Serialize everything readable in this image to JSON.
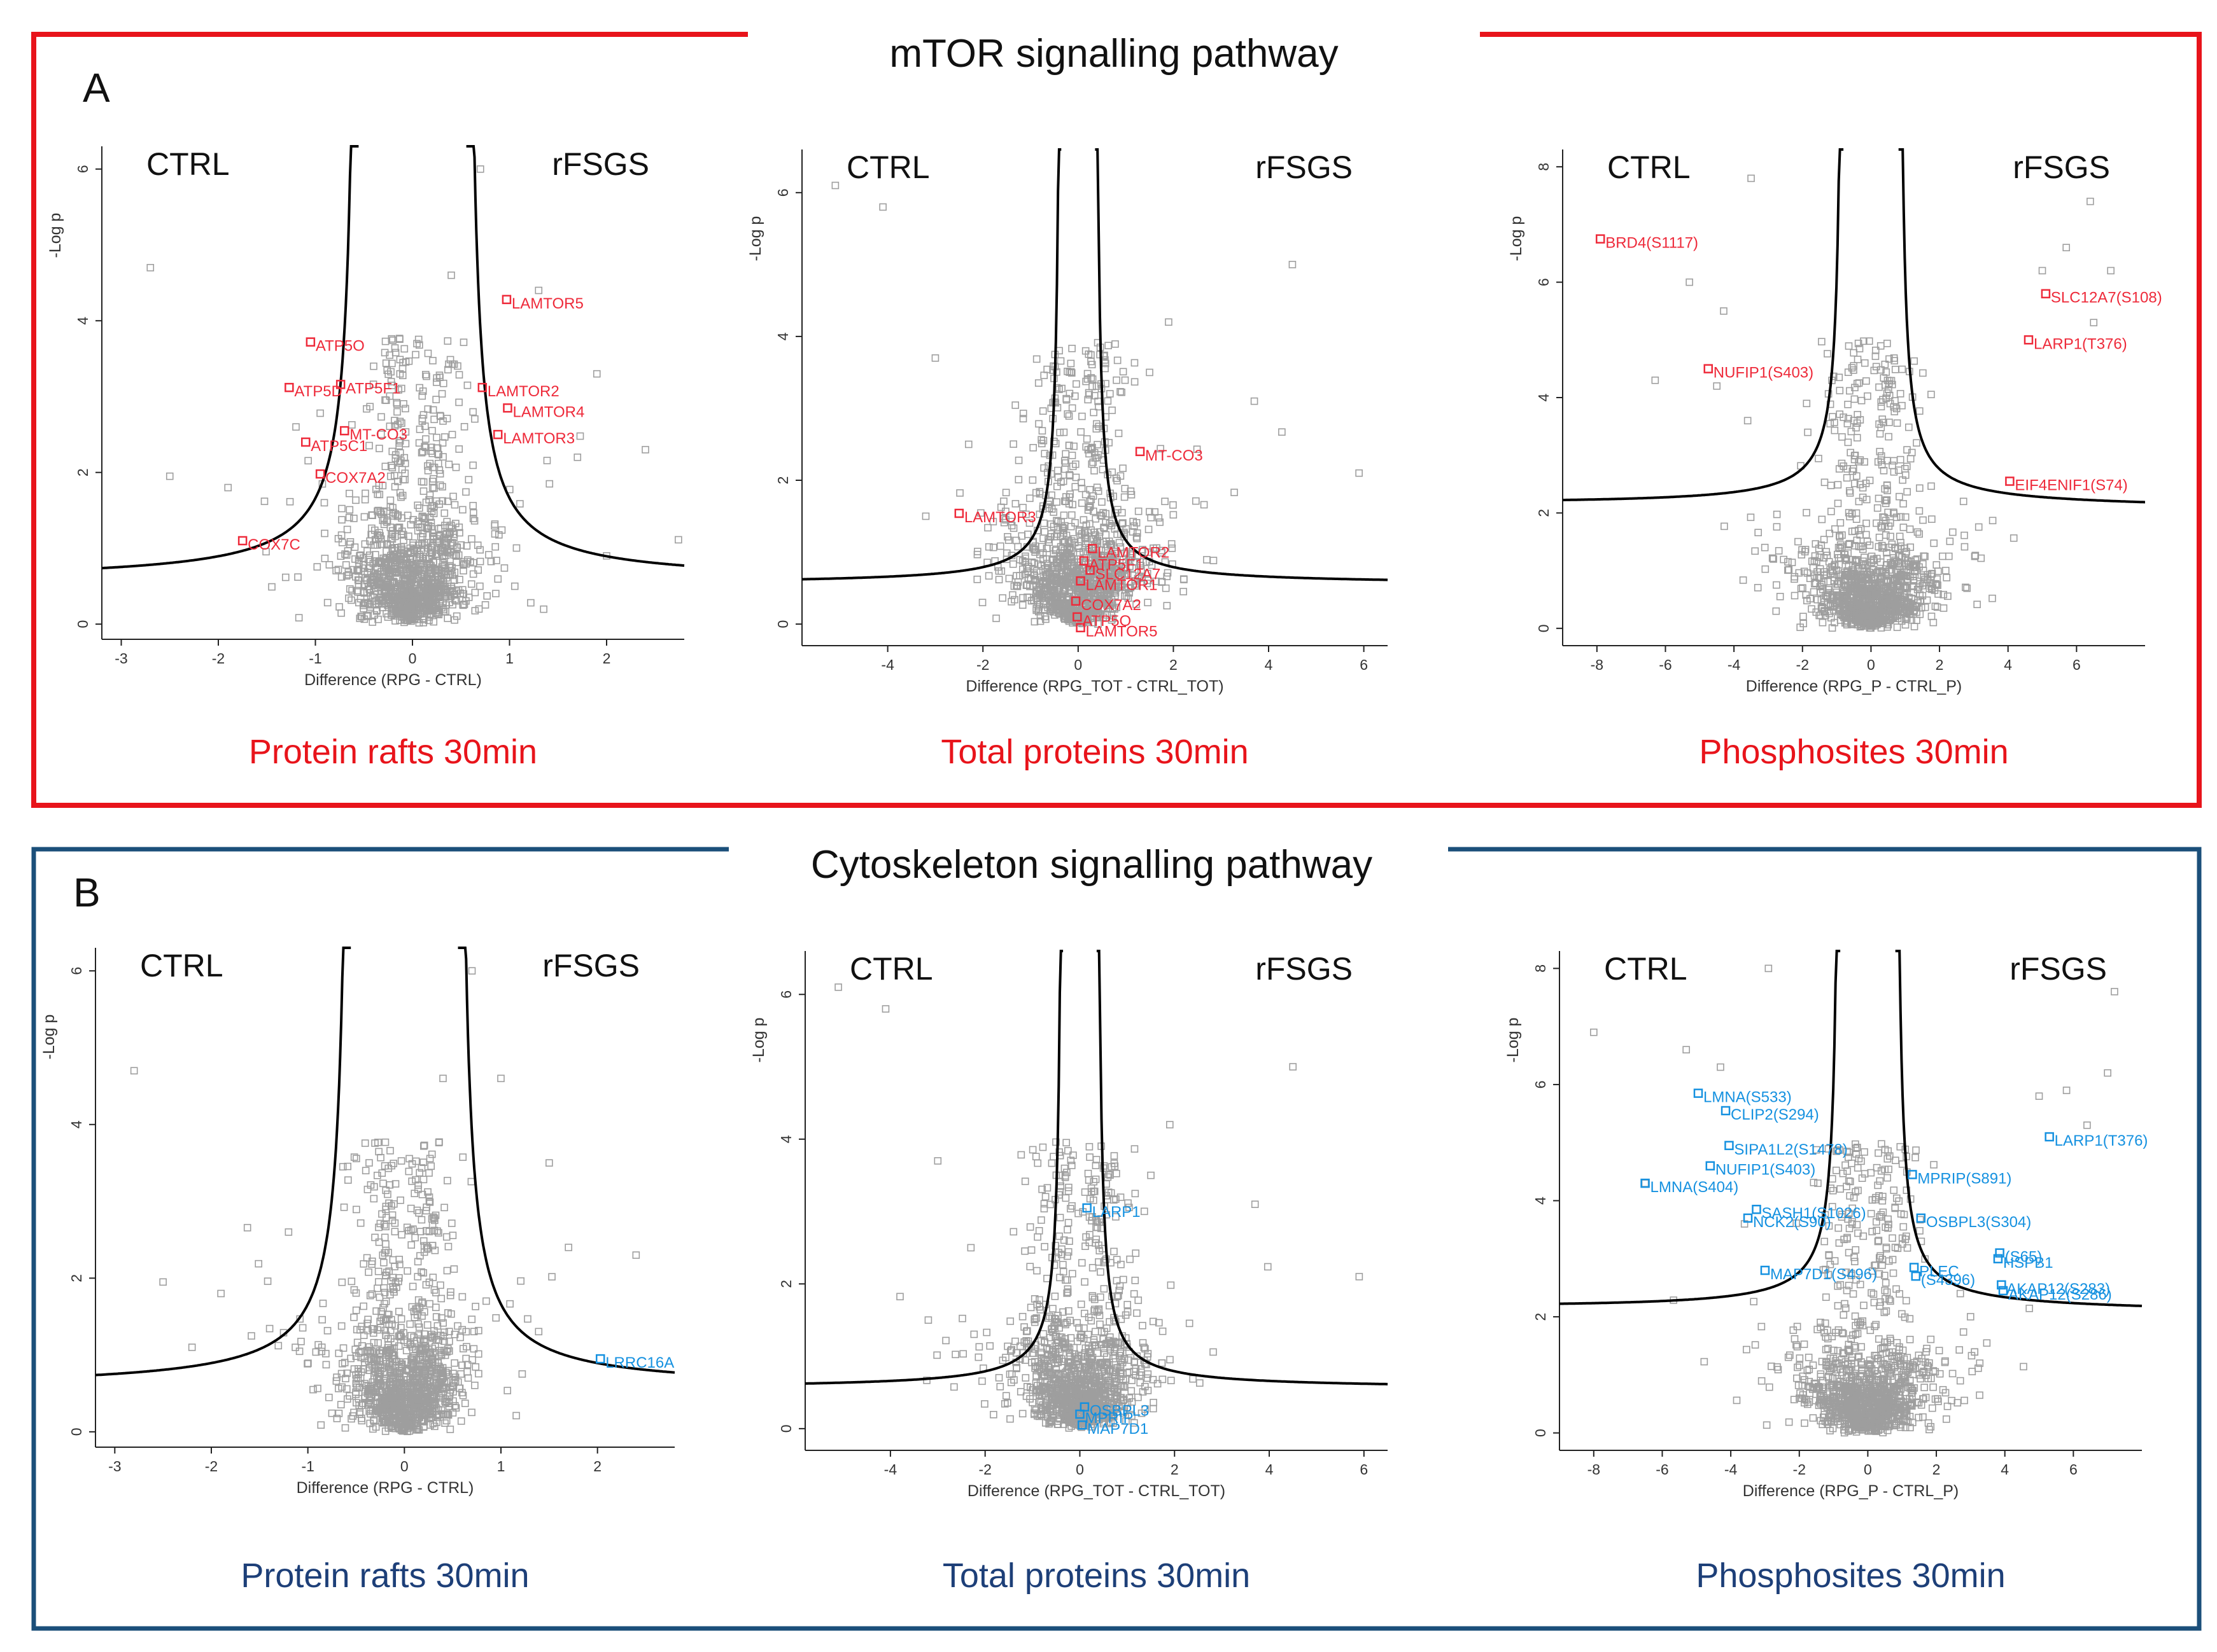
{
  "panels": [
    {
      "letter": "A",
      "title": "mTOR signalling pathway",
      "color": "#e8141b",
      "label_color": "#ee2a3a",
      "caption_color": "#e8141b"
    },
    {
      "letter": "B",
      "title": "Cytoskeleton signalling pathway",
      "color": "#1b4f7a",
      "label_color": "#1591e0",
      "caption_color": "#1d3f78"
    }
  ],
  "chart_data": [
    {
      "type": "scatter",
      "panel": "A",
      "title": "Protein rafts 30min",
      "left_label": "CTRL",
      "right_label": "rFSGS",
      "xlabel": "Difference (RPG - CTRL)",
      "ylabel": "-Log p",
      "xlim": [
        -3.2,
        2.8
      ],
      "ylim": [
        -0.2,
        6.3
      ],
      "xticks": [
        -3,
        -2,
        -1,
        0,
        1,
        2
      ],
      "yticks": [
        0,
        2,
        4,
        6
      ],
      "threshold": {
        "s0": 0.55,
        "c": 0.5
      },
      "background_seed": 11,
      "background_extra": [
        [
          -2.7,
          4.7
        ],
        [
          -2.5,
          1.95
        ],
        [
          -1.2,
          2.6
        ],
        [
          0.7,
          6.0
        ],
        [
          1.3,
          4.4
        ],
        [
          1.7,
          2.2
        ],
        [
          2.4,
          2.3
        ],
        [
          -0.4,
          3.4
        ],
        [
          0.4,
          4.6
        ],
        [
          2.0,
          0.9
        ],
        [
          -1.9,
          1.8
        ],
        [
          1.9,
          3.3
        ]
      ],
      "highlights": [
        {
          "label": "ATP5O",
          "x": -1.05,
          "y": 3.72
        },
        {
          "label": "ATP5D",
          "x": -1.27,
          "y": 3.12
        },
        {
          "label": "ATP5F1",
          "x": -0.74,
          "y": 3.16
        },
        {
          "label": "MT-CO3",
          "x": -0.7,
          "y": 2.55
        },
        {
          "label": "ATP5C1",
          "x": -1.1,
          "y": 2.4
        },
        {
          "label": "COX7A2",
          "x": -0.95,
          "y": 1.98
        },
        {
          "label": "COX7C",
          "x": -1.75,
          "y": 1.1
        },
        {
          "label": "LAMTOR5",
          "x": 0.97,
          "y": 4.28
        },
        {
          "label": "LAMTOR2",
          "x": 0.72,
          "y": 3.12
        },
        {
          "label": "LAMTOR4",
          "x": 0.98,
          "y": 2.85
        },
        {
          "label": "LAMTOR3",
          "x": 0.88,
          "y": 2.5
        }
      ]
    },
    {
      "type": "scatter",
      "panel": "A",
      "title": "Total proteins 30min",
      "left_label": "CTRL",
      "right_label": "rFSGS",
      "xlabel": "Difference (RPG_TOT - CTRL_TOT)",
      "ylabel": "-Log p",
      "xlim": [
        -5.8,
        6.5
      ],
      "ylim": [
        -0.3,
        6.6
      ],
      "xticks": [
        -4,
        -2,
        0,
        2,
        4,
        6
      ],
      "yticks": [
        0,
        2,
        4,
        6
      ],
      "threshold": {
        "s0": 0.35,
        "c": 0.4
      },
      "background_seed": 22,
      "background_extra": [
        [
          -5.1,
          6.1
        ],
        [
          -4.1,
          5.8
        ],
        [
          4.5,
          5.0
        ],
        [
          -3.0,
          3.7
        ],
        [
          1.9,
          4.2
        ],
        [
          5.9,
          2.1
        ],
        [
          -2.3,
          2.5
        ],
        [
          3.7,
          3.1
        ],
        [
          1.5,
          3.5
        ],
        [
          -3.2,
          1.5
        ]
      ],
      "highlights": [
        {
          "label": "MT-CO3",
          "x": 1.3,
          "y": 2.4
        },
        {
          "label": "LAMTOR3",
          "x": -2.5,
          "y": 1.54
        },
        {
          "label": "LAMTOR2",
          "x": 0.3,
          "y": 1.05
        },
        {
          "label": "ATP5F1",
          "x": 0.12,
          "y": 0.88
        },
        {
          "label": "SLC12A7",
          "x": 0.25,
          "y": 0.75
        },
        {
          "label": "LAMTOR1",
          "x": 0.05,
          "y": 0.6
        },
        {
          "label": "COX7A2",
          "x": -0.05,
          "y": 0.32
        },
        {
          "label": "ATP5O",
          "x": -0.02,
          "y": 0.1
        },
        {
          "label": "LAMTOR5",
          "x": 0.05,
          "y": -0.05
        }
      ]
    },
    {
      "type": "scatter",
      "panel": "A",
      "title": "Phosphosites 30min",
      "left_label": "CTRL",
      "right_label": "rFSGS",
      "xlabel": "Difference (RPG_P - CTRL_P)",
      "ylabel": "-Log p",
      "xlim": [
        -9.0,
        8.0
      ],
      "ylim": [
        -0.3,
        8.3
      ],
      "xticks": [
        -8,
        -6,
        -4,
        -2,
        0,
        2,
        4,
        6
      ],
      "yticks": [
        0,
        2,
        4,
        6,
        8
      ],
      "threshold": {
        "s0": 0.8,
        "c": 0.8,
        "base": 2.1,
        "tilt": -0.003
      },
      "background_seed": 33,
      "background_extra": [
        [
          -3.5,
          7.8
        ],
        [
          6.4,
          7.4
        ],
        [
          5.7,
          6.6
        ],
        [
          -5.3,
          6.0
        ],
        [
          -6.3,
          4.3
        ],
        [
          -4.3,
          5.5
        ],
        [
          6.5,
          5.3
        ],
        [
          -3.6,
          3.6
        ],
        [
          7.0,
          6.2
        ],
        [
          5.0,
          6.2
        ],
        [
          -4.5,
          4.2
        ],
        [
          2.7,
          2.2
        ]
      ],
      "highlights": [
        {
          "label": "BRD4(S1117)",
          "x": -7.9,
          "y": 6.75
        },
        {
          "label": "NUFIP1(S403)",
          "x": -4.75,
          "y": 4.5
        },
        {
          "label": "SLC12A7(S108)",
          "x": 5.1,
          "y": 5.8
        },
        {
          "label": "LARP1(T376)",
          "x": 4.6,
          "y": 5.0
        },
        {
          "label": "EIF4ENIF1(S74)",
          "x": 4.05,
          "y": 2.55
        }
      ]
    },
    {
      "type": "scatter",
      "panel": "B",
      "title": "Protein rafts 30min",
      "left_label": "CTRL",
      "right_label": "rFSGS",
      "xlabel": "Difference (RPG - CTRL)",
      "ylabel": "-Log p",
      "xlim": [
        -3.2,
        2.8
      ],
      "ylim": [
        -0.2,
        6.3
      ],
      "xticks": [
        -3,
        -2,
        -1,
        0,
        1,
        2
      ],
      "yticks": [
        0,
        2,
        4,
        6
      ],
      "threshold": {
        "s0": 0.55,
        "c": 0.5
      },
      "background_seed": 44,
      "background_extra": [
        [
          -2.8,
          4.7
        ],
        [
          -2.5,
          1.95
        ],
        [
          -1.2,
          2.6
        ],
        [
          0.7,
          6.0
        ],
        [
          1.0,
          4.6
        ],
        [
          1.7,
          2.4
        ],
        [
          2.4,
          2.3
        ],
        [
          -0.4,
          3.4
        ],
        [
          0.4,
          4.6
        ],
        [
          -1.9,
          1.8
        ],
        [
          1.5,
          3.5
        ],
        [
          -2.2,
          1.1
        ]
      ],
      "highlights": [
        {
          "label": "LRRC16A",
          "x": 2.03,
          "y": 0.95
        }
      ]
    },
    {
      "type": "scatter",
      "panel": "B",
      "title": "Total proteins 30min",
      "left_label": "CTRL",
      "right_label": "rFSGS",
      "xlabel": "Difference (RPG_TOT - CTRL_TOT)",
      "ylabel": "-Log p",
      "xlim": [
        -5.8,
        6.5
      ],
      "ylim": [
        -0.3,
        6.6
      ],
      "xticks": [
        -4,
        -2,
        0,
        2,
        4,
        6
      ],
      "yticks": [
        0,
        2,
        4,
        6
      ],
      "threshold": {
        "s0": 0.35,
        "c": 0.4
      },
      "background_seed": 55,
      "background_extra": [
        [
          -5.1,
          6.1
        ],
        [
          -4.1,
          5.8
        ],
        [
          4.5,
          5.0
        ],
        [
          -3.0,
          3.7
        ],
        [
          1.9,
          4.2
        ],
        [
          5.9,
          2.1
        ],
        [
          -2.3,
          2.5
        ],
        [
          3.7,
          3.1
        ],
        [
          1.5,
          3.5
        ],
        [
          -3.2,
          1.5
        ]
      ],
      "highlights": [
        {
          "label": "LARP1",
          "x": 0.15,
          "y": 3.05
        },
        {
          "label": "OSBPL3",
          "x": 0.1,
          "y": 0.3
        },
        {
          "label": "MPRIP",
          "x": 0.0,
          "y": 0.2
        },
        {
          "label": "MAP7D1",
          "x": 0.05,
          "y": 0.05
        }
      ]
    },
    {
      "type": "scatter",
      "panel": "B",
      "title": "Phosphosites 30min",
      "left_label": "CTRL",
      "right_label": "rFSGS",
      "xlabel": "Difference (RPG_P - CTRL_P)",
      "ylabel": "-Log p",
      "xlim": [
        -9.0,
        8.0
      ],
      "ylim": [
        -0.3,
        8.3
      ],
      "xticks": [
        -8,
        -6,
        -4,
        -2,
        0,
        2,
        4,
        6
      ],
      "yticks": [
        0,
        2,
        4,
        6,
        8
      ],
      "threshold": {
        "s0": 0.8,
        "c": 0.8,
        "base": 2.1,
        "tilt": -0.003
      },
      "background_seed": 66,
      "background_extra": [
        [
          -2.9,
          8.0
        ],
        [
          7.2,
          7.6
        ],
        [
          5.8,
          5.9
        ],
        [
          -5.3,
          6.6
        ],
        [
          -8.0,
          6.9
        ],
        [
          -4.3,
          6.3
        ],
        [
          6.4,
          5.3
        ],
        [
          -3.6,
          3.6
        ],
        [
          7.0,
          6.2
        ],
        [
          5.0,
          5.8
        ],
        [
          -6.5,
          4.3
        ],
        [
          2.7,
          2.4
        ]
      ],
      "highlights": [
        {
          "label": "LMNA(S533)",
          "x": -4.95,
          "y": 5.85
        },
        {
          "label": "CLIP2(S294)",
          "x": -4.15,
          "y": 5.55
        },
        {
          "label": "SIPA1L2(S1478)",
          "x": -4.05,
          "y": 4.95
        },
        {
          "label": "NUFIP1(S403)",
          "x": -4.6,
          "y": 4.6
        },
        {
          "label": "LMNA(S404)",
          "x": -6.5,
          "y": 4.3
        },
        {
          "label": "SASH1(S1026)",
          "x": -3.25,
          "y": 3.85
        },
        {
          "label": "NCK2(S90)",
          "x": -3.5,
          "y": 3.7
        },
        {
          "label": "MAP7D1(S496)",
          "x": -3.0,
          "y": 2.8
        },
        {
          "label": "LARP1(T376)",
          "x": 5.3,
          "y": 5.1
        },
        {
          "label": "MPRIP(S891)",
          "x": 1.3,
          "y": 4.45
        },
        {
          "label": "OSBPL3(S304)",
          "x": 1.55,
          "y": 3.7
        },
        {
          "label": "(S65)",
          "x": 3.85,
          "y": 3.1
        },
        {
          "label": "HSPB1",
          "x": 3.8,
          "y": 3.0
        },
        {
          "label": "PLEC",
          "x": 1.35,
          "y": 2.85
        },
        {
          "label": "AKAP12(S283)",
          "x": 3.9,
          "y": 2.55
        },
        {
          "label": "AKAP12(S286)",
          "x": 3.95,
          "y": 2.45
        },
        {
          "label": "(S4396)",
          "x": 1.4,
          "y": 2.7
        }
      ]
    }
  ]
}
